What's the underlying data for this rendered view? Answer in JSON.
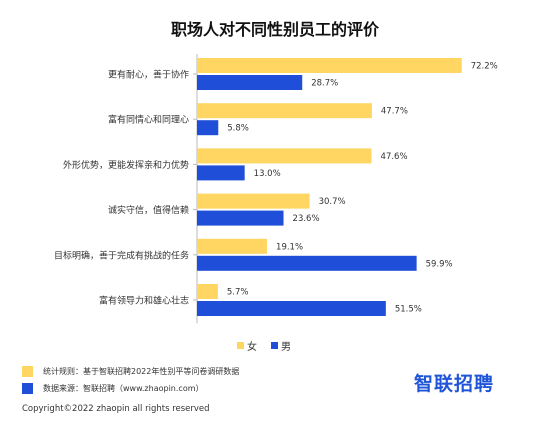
{
  "title": "职场人对不同性别员工的评价",
  "colors": {
    "female": "#ffd662",
    "male": "#1f4fd8",
    "logo": "#1f55d6"
  },
  "legend": {
    "female": "女",
    "male": "男"
  },
  "notes": {
    "rule": "统计规则：基于智联招聘2022年性别平等问卷调研数据",
    "source": "数据来源：智联招聘（www.zhaopin.com）"
  },
  "logo": "智联招聘",
  "copyright": "Copyright©2022 zhaopin all rights reserved",
  "chart_data": {
    "type": "bar",
    "orientation": "horizontal",
    "categories": [
      "更有耐心，善于协作",
      "富有同情心和同理心",
      "外形优势，更能发挥亲和力优势",
      "诚实守信，值得信赖",
      "目标明确，善于完成有挑战的任务",
      "富有领导力和雄心壮志"
    ],
    "series": [
      {
        "name": "女",
        "values": [
          72.2,
          47.7,
          47.6,
          30.7,
          19.1,
          5.7
        ],
        "labels": [
          "72.2%",
          "47.7%",
          "47.6%",
          "30.7%",
          "19.1%",
          "5.7%"
        ]
      },
      {
        "name": "男",
        "values": [
          28.7,
          5.8,
          13.0,
          23.6,
          59.9,
          51.5
        ],
        "labels": [
          "28.7%",
          "5.8%",
          "13.0%",
          "23.6%",
          "59.9%",
          "51.5%"
        ]
      }
    ],
    "xlim": [
      0,
      75
    ],
    "legend_position": "bottom",
    "grid": false
  }
}
